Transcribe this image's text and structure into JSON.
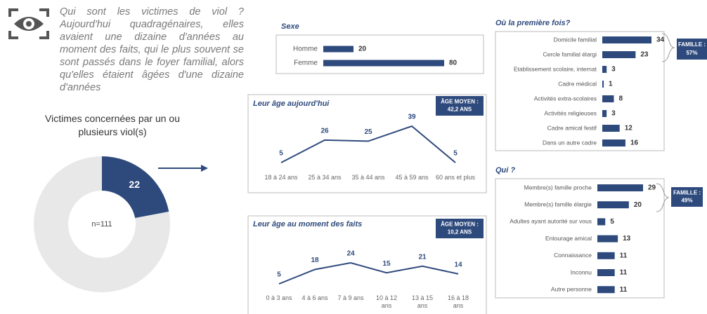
{
  "intro": "Qui sont les victimes de viol ? Aujourd'hui quadragénaires, elles avaient une dizaine d'années au moment des faits, qui le plus souvent se sont passés dans le foyer familial, alors qu'elles étaient âgées d'une dizaine d'années",
  "chart_data": [
    {
      "type": "pie",
      "title": "Victimes concernées par un ou plusieurs viol(s)",
      "values": [
        22
      ],
      "center_label": "n=111",
      "color": "#2e4a7d"
    },
    {
      "type": "bar",
      "title": "Sexe",
      "categories": [
        "Homme",
        "Femme"
      ],
      "values": [
        20,
        80
      ],
      "color": "#2e4a7d"
    },
    {
      "type": "line",
      "title": "Leur âge aujourd'hui",
      "categories": [
        "18 à 24 ans",
        "25 à 34 ans",
        "35 à 44 ans",
        "45 à 59 ans",
        "60 ans et plus"
      ],
      "values": [
        5,
        26,
        25,
        39,
        5
      ],
      "color": "#2e4a7d",
      "annotation": {
        "label": "Âge moyen :",
        "value": "42,2 ans"
      }
    },
    {
      "type": "line",
      "title": "Leur âge au moment des faits",
      "categories": [
        "0 à 3 ans",
        "4 à 6 ans",
        "7 à 9 ans",
        "10 à 12 ans",
        "13 à 15 ans",
        "16 à 18 ans"
      ],
      "values": [
        5,
        18,
        24,
        15,
        21,
        14
      ],
      "color": "#2e4a7d",
      "annotation": {
        "label": "Âge moyen :",
        "value": "10,2 ans"
      }
    },
    {
      "type": "bar",
      "title": "Où la première fois?",
      "categories": [
        "Domicile familial",
        "Cercle familial élargi",
        "Etablissement scolaire, internat",
        "Cadre médical",
        "Activités extra-scolaires",
        "Activités religieuses",
        "Cadre amical festif",
        "Dans un autre cadre"
      ],
      "values": [
        34,
        23,
        3,
        1,
        8,
        3,
        12,
        16
      ],
      "color": "#2e4a7d",
      "annotation": {
        "label": "Famille :",
        "value": "57%"
      }
    },
    {
      "type": "bar",
      "title": "Qui ?",
      "categories": [
        "Membre(s) famille proche",
        "Membre(s)  famille élargie",
        "Adultes ayant autorité sur vous",
        "Entourage amical",
        "Connaissance",
        "Inconnu",
        "Autre personne"
      ],
      "values": [
        29,
        20,
        5,
        13,
        11,
        11,
        11
      ],
      "color": "#2e4a7d",
      "annotation": {
        "label": "Famille :",
        "value": "49%"
      }
    }
  ]
}
